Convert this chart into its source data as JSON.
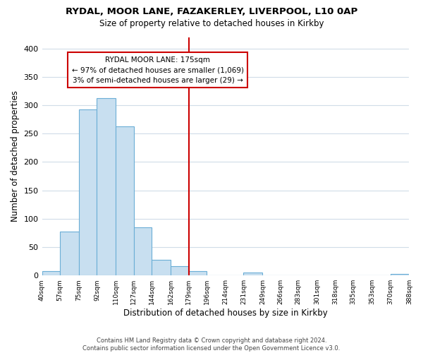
{
  "title1": "RYDAL, MOOR LANE, FAZAKERLEY, LIVERPOOL, L10 0AP",
  "title2": "Size of property relative to detached houses in Kirkby",
  "xlabel": "Distribution of detached houses by size in Kirkby",
  "ylabel": "Number of detached properties",
  "bin_edges": [
    40,
    57,
    75,
    92,
    110,
    127,
    144,
    162,
    179,
    196,
    214,
    231,
    249,
    266,
    283,
    301,
    318,
    335,
    353,
    370,
    388
  ],
  "bar_heights": [
    8,
    77,
    293,
    312,
    263,
    85,
    28,
    16,
    8,
    0,
    0,
    5,
    0,
    0,
    0,
    0,
    0,
    0,
    0,
    3
  ],
  "bar_color": "#c8dff0",
  "bar_edge_color": "#6baed6",
  "vline_x": 179,
  "vline_color": "#cc0000",
  "annotation_title": "RYDAL MOOR LANE: 175sqm",
  "annotation_line1": "← 97% of detached houses are smaller (1,069)",
  "annotation_line2": "3% of semi-detached houses are larger (29) →",
  "annotation_box_color": "#ffffff",
  "annotation_box_edge": "#cc0000",
  "xlim": [
    40,
    388
  ],
  "ylim": [
    0,
    420
  ],
  "yticks": [
    0,
    50,
    100,
    150,
    200,
    250,
    300,
    350,
    400
  ],
  "tick_labels": [
    "40sqm",
    "57sqm",
    "75sqm",
    "92sqm",
    "110sqm",
    "127sqm",
    "144sqm",
    "162sqm",
    "179sqm",
    "196sqm",
    "214sqm",
    "231sqm",
    "249sqm",
    "266sqm",
    "283sqm",
    "301sqm",
    "318sqm",
    "335sqm",
    "353sqm",
    "370sqm",
    "388sqm"
  ],
  "footer1": "Contains HM Land Registry data © Crown copyright and database right 2024.",
  "footer2": "Contains public sector information licensed under the Open Government Licence v3.0.",
  "bg_color": "#ffffff",
  "grid_color": "#d0dce8"
}
